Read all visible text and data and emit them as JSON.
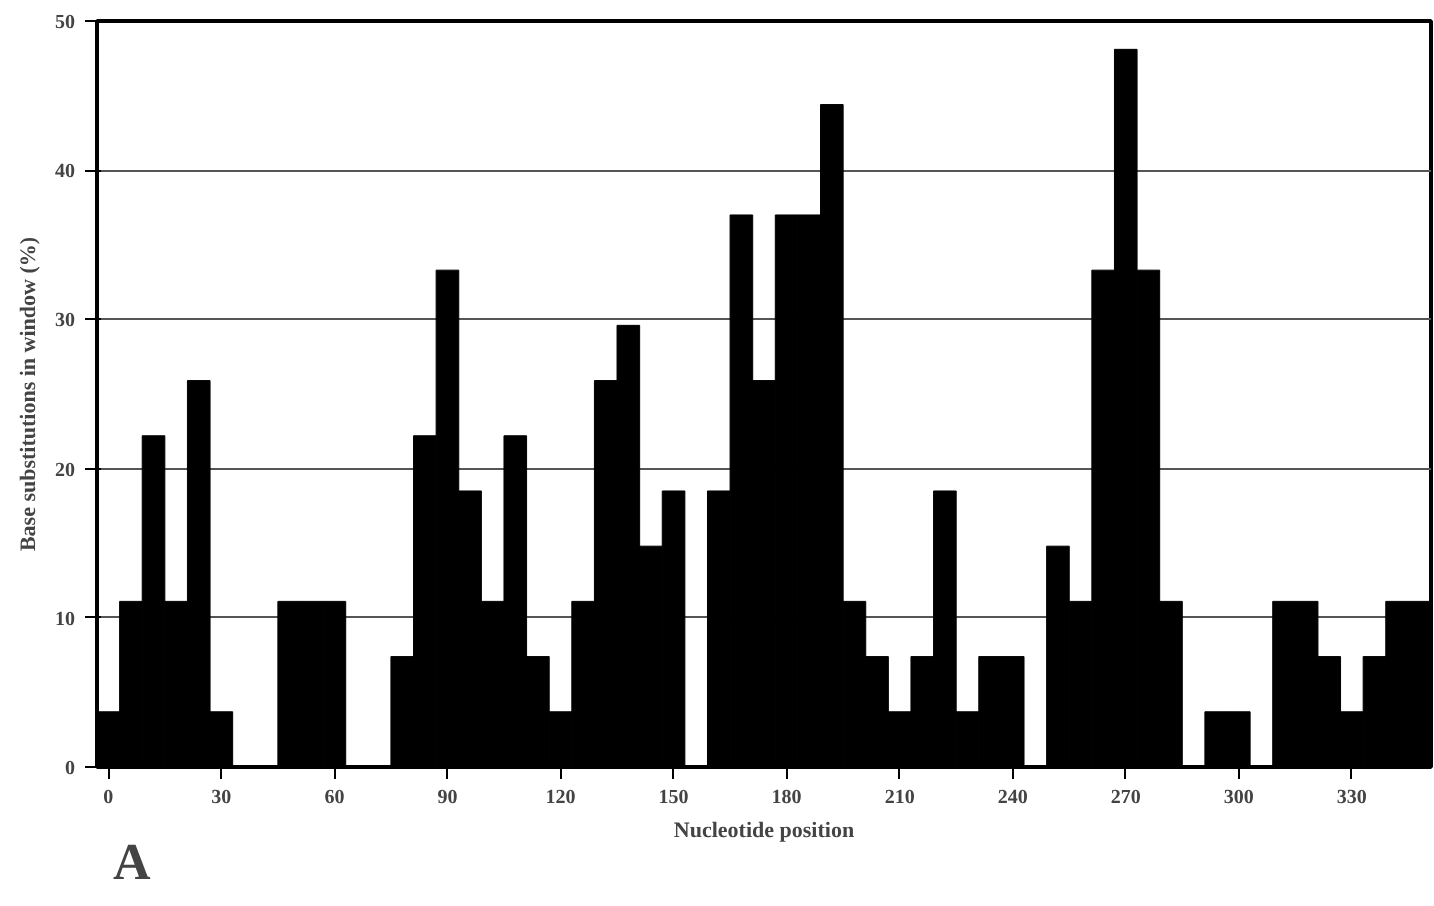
{
  "chart_data": {
    "type": "histogram",
    "xlabel": "Nucleotide position",
    "ylabel": "Base substitutions in window (%)",
    "annotations": [
      "A"
    ],
    "bins": [
      -3,
      3,
      9,
      15,
      21,
      27,
      33,
      39,
      45,
      51,
      57,
      63,
      69,
      75,
      81,
      87,
      93,
      99,
      105,
      111,
      117,
      123,
      129,
      135,
      141,
      147,
      153,
      159,
      165,
      171,
      177,
      183,
      189,
      195,
      201,
      207,
      213,
      219,
      225,
      231,
      237,
      243,
      249,
      255,
      261,
      267,
      273,
      279,
      285,
      291,
      297,
      303,
      309,
      315,
      321,
      327,
      333,
      339,
      345,
      351
    ],
    "values": [
      3.7,
      11.1,
      22.2,
      11.1,
      25.9,
      3.7,
      0,
      0,
      11.1,
      11.1,
      11.1,
      0,
      0,
      7.4,
      22.2,
      33.3,
      18.5,
      11.1,
      22.2,
      7.4,
      3.7,
      11.1,
      25.9,
      29.6,
      14.8,
      18.5,
      0,
      18.5,
      37,
      25.9,
      37,
      37,
      44.4,
      11.1,
      7.4,
      3.7,
      7.4,
      18.5,
      3.7,
      7.4,
      7.4,
      0,
      14.8,
      11.1,
      33.3,
      48.1,
      33.3,
      11.1,
      0,
      3.7,
      3.7,
      0,
      11.1,
      11.1,
      7.4,
      3.7,
      7.4,
      11.1,
      11.1
    ],
    "color": "#000000",
    "xlim": [
      -3,
      351
    ],
    "ylim": [
      0,
      50
    ],
    "xticks": [
      0,
      30,
      60,
      90,
      120,
      150,
      180,
      210,
      240,
      270,
      300,
      330
    ],
    "yticks": [
      0,
      10,
      20,
      30,
      40,
      50
    ],
    "grid": "y"
  }
}
